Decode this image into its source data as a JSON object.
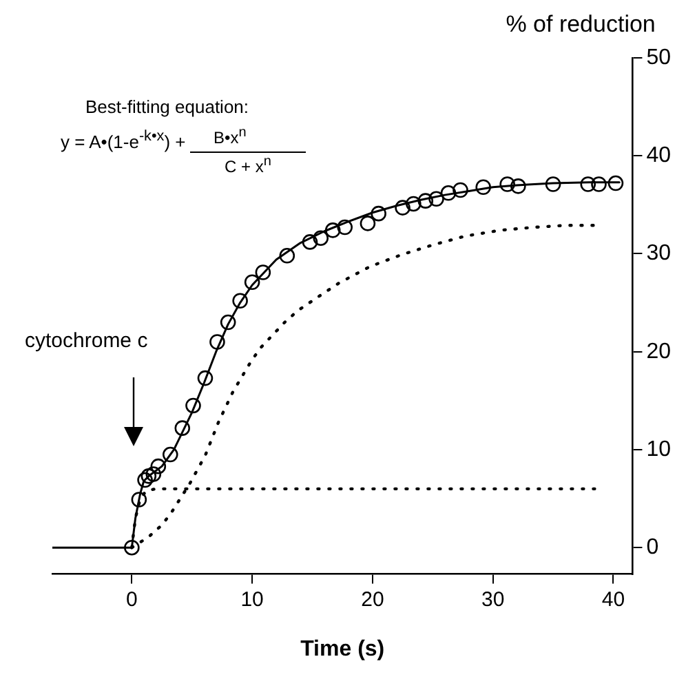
{
  "chart_data": {
    "type": "line",
    "xlabel": "Time (s)",
    "ylabel": "% of reduction",
    "xlim": [
      -6.6,
      41.6
    ],
    "ylim": [
      -2.7,
      50
    ],
    "xticks": [
      0,
      10,
      20,
      30,
      40
    ],
    "yticks": [
      0,
      10,
      20,
      30,
      40,
      50
    ],
    "grid": false,
    "legend": false,
    "annotations": [
      "Best-fitting equation:",
      "y = A•(1-e$^{-k•x}$) +",
      "B•x$^{n}$",
      "C + x$^{n}$",
      "cytochrome c"
    ],
    "series": [
      {
        "type": "scatter",
        "marker": "circle",
        "color": "#000000",
        "x": [
          0,
          0.6,
          1.1,
          1.4,
          1.8,
          2.2,
          3.2,
          4.2,
          5.1,
          6.1,
          7.1,
          8,
          9,
          10,
          10.9,
          12.9,
          14.8,
          15.7,
          16.7,
          17.7,
          19.6,
          20.5,
          22.5,
          23.4,
          24.4,
          25.3,
          26.3,
          27.3,
          29.2,
          31.2,
          32.1,
          35,
          37.9,
          38.8,
          40.2
        ],
        "values": [
          0,
          4.9,
          6.9,
          7.3,
          7.5,
          8.3,
          9.5,
          12.2,
          14.5,
          17.3,
          21,
          23,
          25.2,
          27.1,
          28.1,
          29.8,
          31.2,
          31.6,
          32.4,
          32.7,
          33.1,
          34.1,
          34.7,
          35.1,
          35.4,
          35.6,
          36.2,
          36.5,
          36.8,
          37.1,
          36.9,
          37.1,
          37.1,
          37.1,
          37.2
        ]
      },
      {
        "type": "line",
        "line_style": "solid",
        "marker": "none",
        "color": "#000000",
        "x": [
          -6.6,
          0,
          0.3,
          0.7,
          1,
          1.5,
          2.5,
          3.5,
          5,
          6,
          7,
          8,
          9,
          10,
          12,
          14,
          16,
          18,
          20,
          22,
          24,
          26,
          28,
          30,
          32,
          35,
          38,
          40.5
        ],
        "values": [
          0,
          0,
          3,
          5.5,
          6.8,
          7.4,
          8.3,
          10,
          13.8,
          16.8,
          20,
          22.8,
          25,
          26.8,
          29.4,
          31.1,
          32.3,
          33.3,
          34.2,
          34.9,
          35.5,
          36,
          36.4,
          36.8,
          37,
          37.2,
          37.3,
          37.3
        ]
      },
      {
        "type": "line",
        "line_style": "dotted",
        "marker": "none",
        "color": "#000000",
        "x": [
          0,
          1.4,
          2.5,
          3.3,
          4.8,
          6.1,
          7.2,
          8.4,
          9.9,
          10.7,
          11.7,
          12.7,
          13.8,
          15,
          17.2,
          19.8,
          22.4,
          25,
          27.7,
          30.6,
          33.4,
          36.1,
          38.7
        ],
        "values": [
          0,
          1.1,
          2.3,
          3.6,
          6.5,
          9.4,
          12.8,
          15.9,
          19,
          20.4,
          21.7,
          23,
          24.2,
          25.2,
          27,
          28.7,
          29.9,
          30.9,
          31.8,
          32.4,
          32.7,
          32.9,
          32.9
        ]
      },
      {
        "type": "line",
        "line_style": "dotted",
        "marker": "none",
        "color": "#000000",
        "x": [
          0,
          0.3,
          0.7,
          1.2,
          2,
          5,
          10,
          20,
          30,
          38.7
        ],
        "values": [
          0,
          3,
          5,
          5.8,
          6,
          6,
          6,
          6,
          6,
          6
        ]
      }
    ]
  }
}
